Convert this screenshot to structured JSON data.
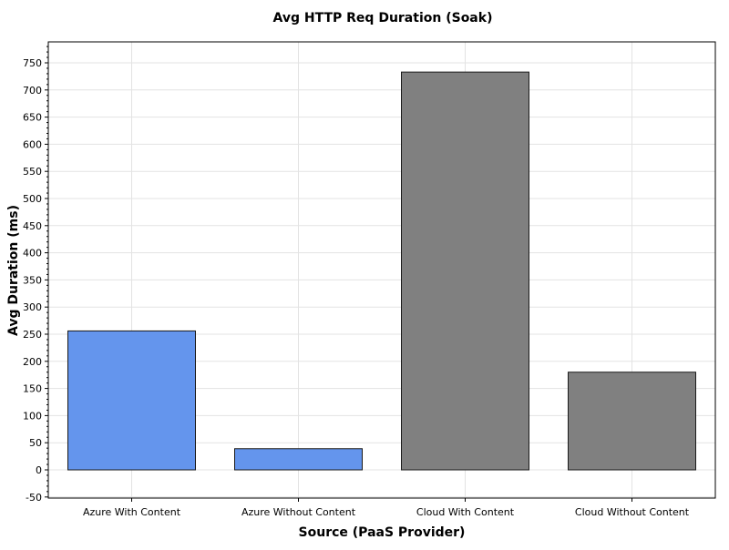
{
  "chart_data": {
    "type": "bar",
    "title": "Avg HTTP Req Duration (Soak)",
    "xlabel": "Source (PaaS Provider)",
    "ylabel": "Avg Duration (ms)",
    "categories": [
      "Azure With Content",
      "Azure Without Content",
      "Cloud With Content",
      "Cloud Without Content"
    ],
    "values": [
      256,
      39,
      733,
      180
    ],
    "bar_colors": [
      "#6495ed",
      "#6495ed",
      "#808080",
      "#808080"
    ],
    "ylim": [
      -55,
      785
    ],
    "yticks": [
      -50,
      0,
      50,
      100,
      150,
      200,
      250,
      300,
      350,
      400,
      450,
      500,
      550,
      600,
      650,
      700,
      750
    ],
    "grid": true,
    "legend": "none"
  }
}
